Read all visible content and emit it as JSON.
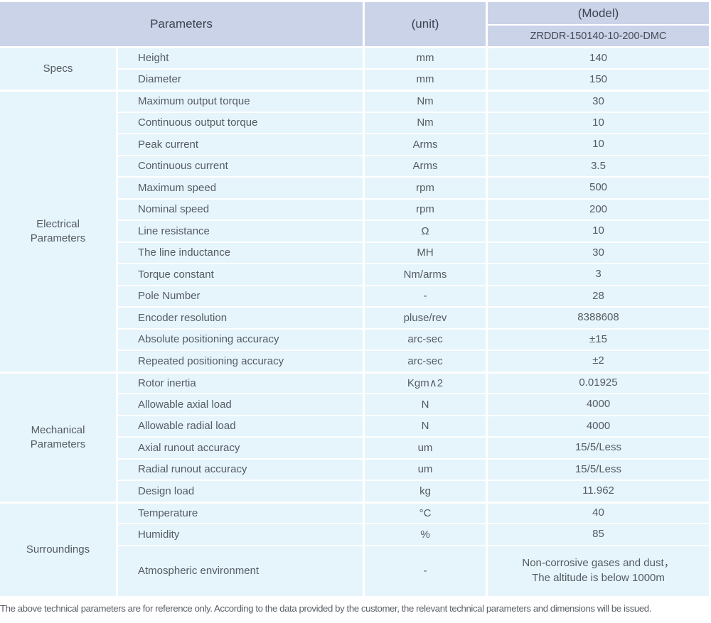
{
  "header": {
    "parameters_label": "Parameters",
    "unit_label": "(unit)",
    "model_label": "(Model)",
    "model_value": "ZRDDR-150140-10-200-DMC"
  },
  "sections": [
    {
      "group": "Specs",
      "rows": [
        {
          "parameter": "Height",
          "unit": "mm",
          "value": "140"
        },
        {
          "parameter": "Diameter",
          "unit": "mm",
          "value": "150"
        }
      ]
    },
    {
      "group": "Electrical Parameters",
      "rows": [
        {
          "parameter": "Maximum output torque",
          "unit": "Nm",
          "value": "30"
        },
        {
          "parameter": "Continuous output torque",
          "unit": "Nm",
          "value": "10"
        },
        {
          "parameter": "Peak current",
          "unit": "Arms",
          "value": "10"
        },
        {
          "parameter": "Continuous current",
          "unit": "Arms",
          "value": "3.5"
        },
        {
          "parameter": "Maximum speed",
          "unit": "rpm",
          "value": "500"
        },
        {
          "parameter": "Nominal speed",
          "unit": "rpm",
          "value": "200"
        },
        {
          "parameter": "Line resistance",
          "unit": "Ω",
          "value": "10"
        },
        {
          "parameter": "The line inductance",
          "unit": "MH",
          "value": "30"
        },
        {
          "parameter": "Torque constant",
          "unit": "Nm/arms",
          "value": "3"
        },
        {
          "parameter": "Pole Number",
          "unit": "-",
          "value": "28"
        },
        {
          "parameter": "Encoder resolution",
          "unit": "pluse/rev",
          "value": "8388608"
        },
        {
          "parameter": "Absolute positioning accuracy",
          "unit": "arc-sec",
          "value": "±15"
        },
        {
          "parameter": "Repeated positioning accuracy",
          "unit": "arc-sec",
          "value": "±2"
        }
      ]
    },
    {
      "group": "Mechanical Parameters",
      "rows": [
        {
          "parameter": "Rotor inertia",
          "unit": "Kgm∧2",
          "value": "0.01925"
        },
        {
          "parameter": "Allowable axial load",
          "unit": "N",
          "value": "4000"
        },
        {
          "parameter": "Allowable radial load",
          "unit": "N",
          "value": "4000"
        },
        {
          "parameter": "Axial runout accuracy",
          "unit": "um",
          "value": "15/5/Less"
        },
        {
          "parameter": "Radial runout accuracy",
          "unit": "um",
          "value": "15/5/Less"
        },
        {
          "parameter": "Design load",
          "unit": "kg",
          "value": "11.962"
        }
      ]
    },
    {
      "group": "Surroundings",
      "rows": [
        {
          "parameter": "Temperature",
          "unit": "°C",
          "value": "40"
        },
        {
          "parameter": "Humidity",
          "unit": "%",
          "value": "85"
        },
        {
          "parameter": "Atmospheric environment",
          "unit": "-",
          "value": "Non-corrosive gases and dust，\nThe altitude is below 1000m"
        }
      ]
    }
  ],
  "footer_note": "The above technical parameters are for reference only. According to the data provided by the customer, the relevant technical parameters and dimensions will be issued.",
  "colors": {
    "header_bg": "#cbd3e8",
    "cell_bg": "#e6f4fb",
    "divider": "#ffffff",
    "header_text": "#3c4350",
    "body_text": "#555c63"
  }
}
